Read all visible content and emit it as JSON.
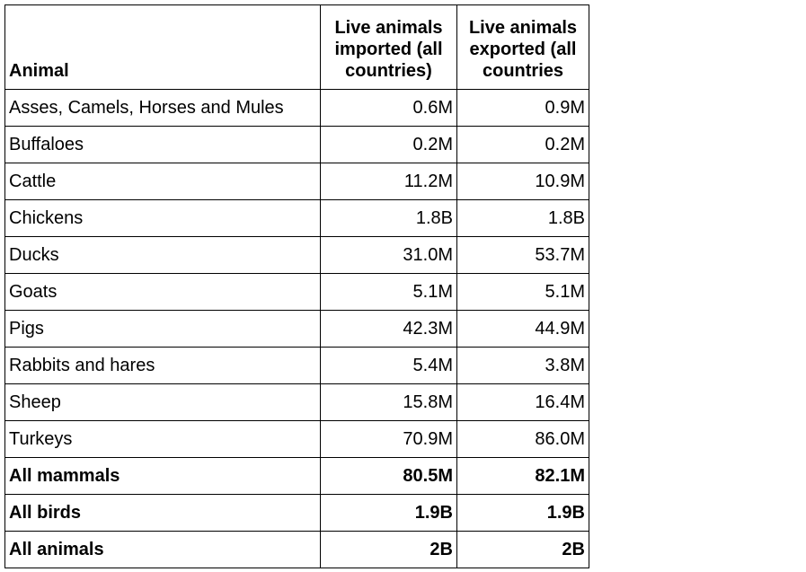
{
  "table": {
    "headers": [
      "Animal",
      "Live animals imported (all countries)",
      "Live animals exported (all countries"
    ],
    "rows": [
      {
        "animal": "Asses, Camels, Horses and Mules",
        "imported": "0.6M",
        "exported": "0.9M"
      },
      {
        "animal": "Buffaloes",
        "imported": "0.2M",
        "exported": "0.2M"
      },
      {
        "animal": "Cattle",
        "imported": "11.2M",
        "exported": "10.9M"
      },
      {
        "animal": "Chickens",
        "imported": "1.8B",
        "exported": "1.8B"
      },
      {
        "animal": "Ducks",
        "imported": "31.0M",
        "exported": "53.7M"
      },
      {
        "animal": "Goats",
        "imported": "5.1M",
        "exported": "5.1M"
      },
      {
        "animal": "Pigs",
        "imported": "42.3M",
        "exported": "44.9M"
      },
      {
        "animal": "Rabbits and hares",
        "imported": "5.4M",
        "exported": "3.8M"
      },
      {
        "animal": "Sheep",
        "imported": "15.8M",
        "exported": "16.4M"
      },
      {
        "animal": "Turkeys",
        "imported": "70.9M",
        "exported": "86.0M"
      }
    ],
    "summary_rows": [
      {
        "animal": "All mammals",
        "imported": "80.5M",
        "exported": "82.1M"
      },
      {
        "animal": "All birds",
        "imported": "1.9B",
        "exported": "1.9B"
      },
      {
        "animal": "All animals",
        "imported": "2B",
        "exported": "2B"
      }
    ]
  }
}
